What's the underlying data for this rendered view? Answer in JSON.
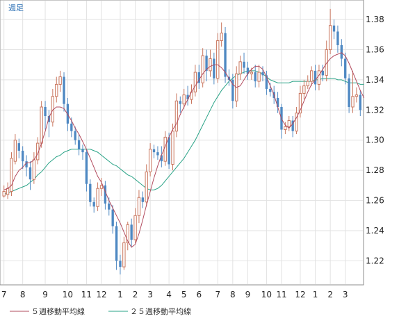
{
  "chart_data": {
    "type": "candlestick",
    "period_label": "週足",
    "y_ticks": [
      "1.38",
      "1.36",
      "1.34",
      "1.32",
      "1.30",
      "1.28",
      "1.26",
      "1.24",
      "1.22"
    ],
    "ylim": [
      1.205,
      1.392
    ],
    "x_ticks": [
      "7",
      "8",
      "9",
      "10",
      "11",
      "12",
      "1",
      "2",
      "3",
      "4",
      "5",
      "6",
      "7",
      "8",
      "9",
      "10",
      "11",
      "12",
      "1",
      "2",
      "3"
    ],
    "x_tick_index": [
      0,
      5,
      11,
      17,
      22,
      26,
      31,
      35,
      39,
      44,
      48,
      52,
      57,
      61,
      65,
      70,
      74,
      79,
      83,
      87,
      91
    ],
    "colors": {
      "up": "#c9765e",
      "down": "#4e88c2",
      "ma5": "#b24b5e",
      "ma25": "#2aa387",
      "grid": "#e2e2e2",
      "frame": "#8c8c8c",
      "period": "#2a6fb5"
    },
    "series": [
      {
        "name": "５週移動平均線",
        "color": "#b24b5e",
        "values": [
          1.267,
          1.268,
          1.27,
          1.276,
          1.28,
          1.282,
          1.285,
          1.285,
          1.287,
          1.291,
          1.298,
          1.306,
          1.315,
          1.32,
          1.322,
          1.322,
          1.321,
          1.317,
          1.313,
          1.308,
          1.304,
          1.299,
          1.294,
          1.288,
          1.282,
          1.276,
          1.272,
          1.266,
          1.26,
          1.255,
          1.25,
          1.245,
          1.239,
          1.233,
          1.229,
          1.231,
          1.238,
          1.247,
          1.257,
          1.266,
          1.275,
          1.283,
          1.29,
          1.296,
          1.302,
          1.307,
          1.311,
          1.317,
          1.322,
          1.327,
          1.332,
          1.336,
          1.34,
          1.344,
          1.347,
          1.349,
          1.35,
          1.35,
          1.348,
          1.345,
          1.341,
          1.337,
          1.335,
          1.336,
          1.34,
          1.344,
          1.347,
          1.349,
          1.349,
          1.347,
          1.342,
          1.336,
          1.33,
          1.322,
          1.314,
          1.31,
          1.308,
          1.311,
          1.315,
          1.32,
          1.326,
          1.332,
          1.337,
          1.34,
          1.343,
          1.347,
          1.351,
          1.354,
          1.356,
          1.357,
          1.358,
          1.356,
          1.351,
          1.345,
          1.339,
          1.333,
          1.328
        ]
      },
      {
        "name": "２５週移動平均線",
        "color": "#2aa387",
        "values": [
          1.264,
          1.265,
          1.266,
          1.267,
          1.268,
          1.269,
          1.27,
          1.272,
          1.274,
          1.277,
          1.279,
          1.282,
          1.285,
          1.287,
          1.289,
          1.29,
          1.292,
          1.293,
          1.294,
          1.294,
          1.294,
          1.294,
          1.294,
          1.294,
          1.293,
          1.292,
          1.29,
          1.288,
          1.286,
          1.284,
          1.283,
          1.281,
          1.279,
          1.277,
          1.276,
          1.274,
          1.272,
          1.27,
          1.268,
          1.267,
          1.267,
          1.268,
          1.27,
          1.273,
          1.276,
          1.279,
          1.282,
          1.285,
          1.288,
          1.292,
          1.296,
          1.3,
          1.305,
          1.31,
          1.315,
          1.32,
          1.325,
          1.329,
          1.333,
          1.336,
          1.339,
          1.341,
          1.343,
          1.344,
          1.345,
          1.346,
          1.346,
          1.346,
          1.345,
          1.344,
          1.342,
          1.34,
          1.339,
          1.338,
          1.338,
          1.338,
          1.338,
          1.339,
          1.339,
          1.339,
          1.339,
          1.339,
          1.339,
          1.34,
          1.34,
          1.341,
          1.341,
          1.341,
          1.341,
          1.34,
          1.34,
          1.339,
          1.338,
          1.338,
          1.338,
          1.337,
          1.337
        ]
      }
    ],
    "candles": [
      [
        1.263,
        1.266,
        1.262,
        1.27
      ],
      [
        1.264,
        1.268,
        1.261,
        1.272
      ],
      [
        1.266,
        1.288,
        1.263,
        1.292
      ],
      [
        1.286,
        1.3,
        1.284,
        1.304
      ],
      [
        1.298,
        1.293,
        1.288,
        1.301
      ],
      [
        1.293,
        1.286,
        1.281,
        1.296
      ],
      [
        1.286,
        1.282,
        1.276,
        1.29
      ],
      [
        1.282,
        1.274,
        1.267,
        1.286
      ],
      [
        1.274,
        1.287,
        1.271,
        1.292
      ],
      [
        1.287,
        1.298,
        1.284,
        1.302
      ],
      [
        1.298,
        1.322,
        1.295,
        1.326
      ],
      [
        1.322,
        1.316,
        1.307,
        1.326
      ],
      [
        1.316,
        1.312,
        1.302,
        1.32
      ],
      [
        1.312,
        1.329,
        1.309,
        1.334
      ],
      [
        1.329,
        1.337,
        1.325,
        1.342
      ],
      [
        1.337,
        1.342,
        1.332,
        1.346
      ],
      [
        1.342,
        1.324,
        1.319,
        1.345
      ],
      [
        1.324,
        1.311,
        1.306,
        1.328
      ],
      [
        1.311,
        1.306,
        1.302,
        1.315
      ],
      [
        1.306,
        1.3,
        1.297,
        1.309
      ],
      [
        1.3,
        1.294,
        1.29,
        1.304
      ],
      [
        1.294,
        1.292,
        1.287,
        1.297
      ],
      [
        1.292,
        1.271,
        1.266,
        1.294
      ],
      [
        1.271,
        1.259,
        1.256,
        1.274
      ],
      [
        1.259,
        1.256,
        1.252,
        1.262
      ],
      [
        1.256,
        1.268,
        1.253,
        1.272
      ],
      [
        1.268,
        1.27,
        1.263,
        1.275
      ],
      [
        1.27,
        1.258,
        1.254,
        1.273
      ],
      [
        1.258,
        1.254,
        1.25,
        1.262
      ],
      [
        1.254,
        1.243,
        1.238,
        1.257
      ],
      [
        1.243,
        1.22,
        1.214,
        1.246
      ],
      [
        1.22,
        1.216,
        1.211,
        1.224
      ],
      [
        1.216,
        1.232,
        1.214,
        1.236
      ],
      [
        1.232,
        1.244,
        1.227,
        1.246
      ],
      [
        1.244,
        1.234,
        1.229,
        1.248
      ],
      [
        1.234,
        1.25,
        1.232,
        1.255
      ],
      [
        1.25,
        1.262,
        1.245,
        1.267
      ],
      [
        1.262,
        1.259,
        1.255,
        1.266
      ],
      [
        1.259,
        1.279,
        1.256,
        1.284
      ],
      [
        1.279,
        1.294,
        1.276,
        1.298
      ],
      [
        1.294,
        1.292,
        1.288,
        1.297
      ],
      [
        1.292,
        1.29,
        1.287,
        1.296
      ],
      [
        1.29,
        1.286,
        1.282,
        1.296
      ],
      [
        1.286,
        1.302,
        1.283,
        1.306
      ],
      [
        1.302,
        1.284,
        1.281,
        1.305
      ],
      [
        1.284,
        1.306,
        1.28,
        1.311
      ],
      [
        1.306,
        1.326,
        1.302,
        1.331
      ],
      [
        1.326,
        1.324,
        1.318,
        1.329
      ],
      [
        1.324,
        1.33,
        1.321,
        1.334
      ],
      [
        1.33,
        1.327,
        1.323,
        1.336
      ],
      [
        1.327,
        1.332,
        1.324,
        1.337
      ],
      [
        1.332,
        1.345,
        1.329,
        1.35
      ],
      [
        1.345,
        1.338,
        1.334,
        1.35
      ],
      [
        1.338,
        1.356,
        1.335,
        1.361
      ],
      [
        1.356,
        1.346,
        1.339,
        1.36
      ],
      [
        1.346,
        1.354,
        1.342,
        1.36
      ],
      [
        1.354,
        1.341,
        1.337,
        1.358
      ],
      [
        1.341,
        1.366,
        1.338,
        1.371
      ],
      [
        1.366,
        1.371,
        1.362,
        1.378
      ],
      [
        1.371,
        1.342,
        1.338,
        1.375
      ],
      [
        1.342,
        1.34,
        1.336,
        1.347
      ],
      [
        1.34,
        1.326,
        1.321,
        1.344
      ],
      [
        1.326,
        1.344,
        1.322,
        1.349
      ],
      [
        1.344,
        1.352,
        1.34,
        1.356
      ],
      [
        1.352,
        1.348,
        1.344,
        1.358
      ],
      [
        1.348,
        1.344,
        1.34,
        1.352
      ],
      [
        1.344,
        1.345,
        1.34,
        1.348
      ],
      [
        1.345,
        1.339,
        1.335,
        1.35
      ],
      [
        1.339,
        1.345,
        1.335,
        1.35
      ],
      [
        1.345,
        1.343,
        1.339,
        1.349
      ],
      [
        1.343,
        1.334,
        1.33,
        1.346
      ],
      [
        1.334,
        1.332,
        1.329,
        1.338
      ],
      [
        1.332,
        1.328,
        1.324,
        1.336
      ],
      [
        1.328,
        1.322,
        1.318,
        1.332
      ],
      [
        1.322,
        1.307,
        1.301,
        1.324
      ],
      [
        1.307,
        1.309,
        1.304,
        1.312
      ],
      [
        1.309,
        1.313,
        1.306,
        1.316
      ],
      [
        1.313,
        1.306,
        1.302,
        1.316
      ],
      [
        1.306,
        1.318,
        1.304,
        1.322
      ],
      [
        1.318,
        1.331,
        1.315,
        1.336
      ],
      [
        1.331,
        1.336,
        1.327,
        1.34
      ],
      [
        1.336,
        1.339,
        1.334,
        1.343
      ],
      [
        1.339,
        1.346,
        1.336,
        1.349
      ],
      [
        1.346,
        1.337,
        1.333,
        1.35
      ],
      [
        1.337,
        1.346,
        1.333,
        1.35
      ],
      [
        1.346,
        1.343,
        1.339,
        1.35
      ],
      [
        1.343,
        1.36,
        1.339,
        1.366
      ],
      [
        1.36,
        1.376,
        1.357,
        1.387
      ],
      [
        1.376,
        1.372,
        1.367,
        1.38
      ],
      [
        1.372,
        1.363,
        1.358,
        1.376
      ],
      [
        1.363,
        1.354,
        1.349,
        1.367
      ],
      [
        1.354,
        1.341,
        1.337,
        1.358
      ],
      [
        1.341,
        1.322,
        1.318,
        1.344
      ],
      [
        1.322,
        1.329,
        1.318,
        1.346
      ],
      [
        1.329,
        1.33,
        1.325,
        1.335
      ],
      [
        1.33,
        1.32,
        1.316,
        1.333
      ]
    ]
  }
}
